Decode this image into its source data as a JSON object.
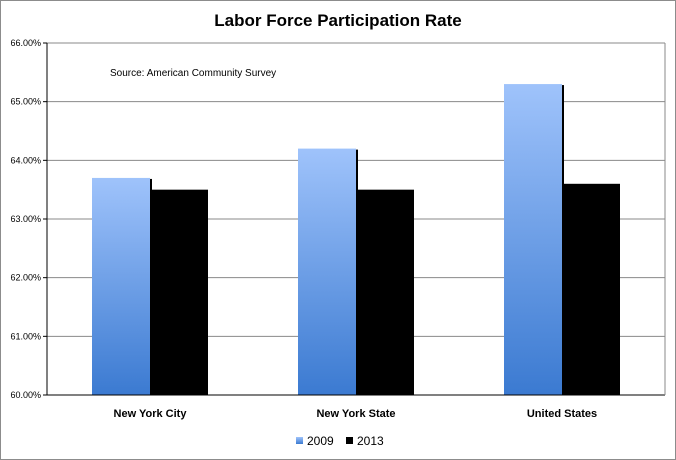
{
  "chart_data": {
    "type": "bar",
    "title": "Labor Force Participation Rate",
    "annotation": "Source:  American Community Survey",
    "categories": [
      "New York City",
      "New York State",
      "United States"
    ],
    "series": [
      {
        "name": "2009",
        "values": [
          63.7,
          64.2,
          65.3
        ],
        "color": "#7fa9e8"
      },
      {
        "name": "2013",
        "values": [
          63.5,
          63.5,
          63.6
        ],
        "color": "#000000"
      }
    ],
    "ylim": [
      60,
      66
    ],
    "yticks": [
      60,
      61,
      62,
      63,
      64,
      65,
      66
    ],
    "ytick_labels": [
      "60.00%",
      "61.00%",
      "62.00%",
      "63.00%",
      "64.00%",
      "65.00%",
      "66.00%"
    ],
    "grid": true,
    "legend_position": "bottom-center"
  }
}
